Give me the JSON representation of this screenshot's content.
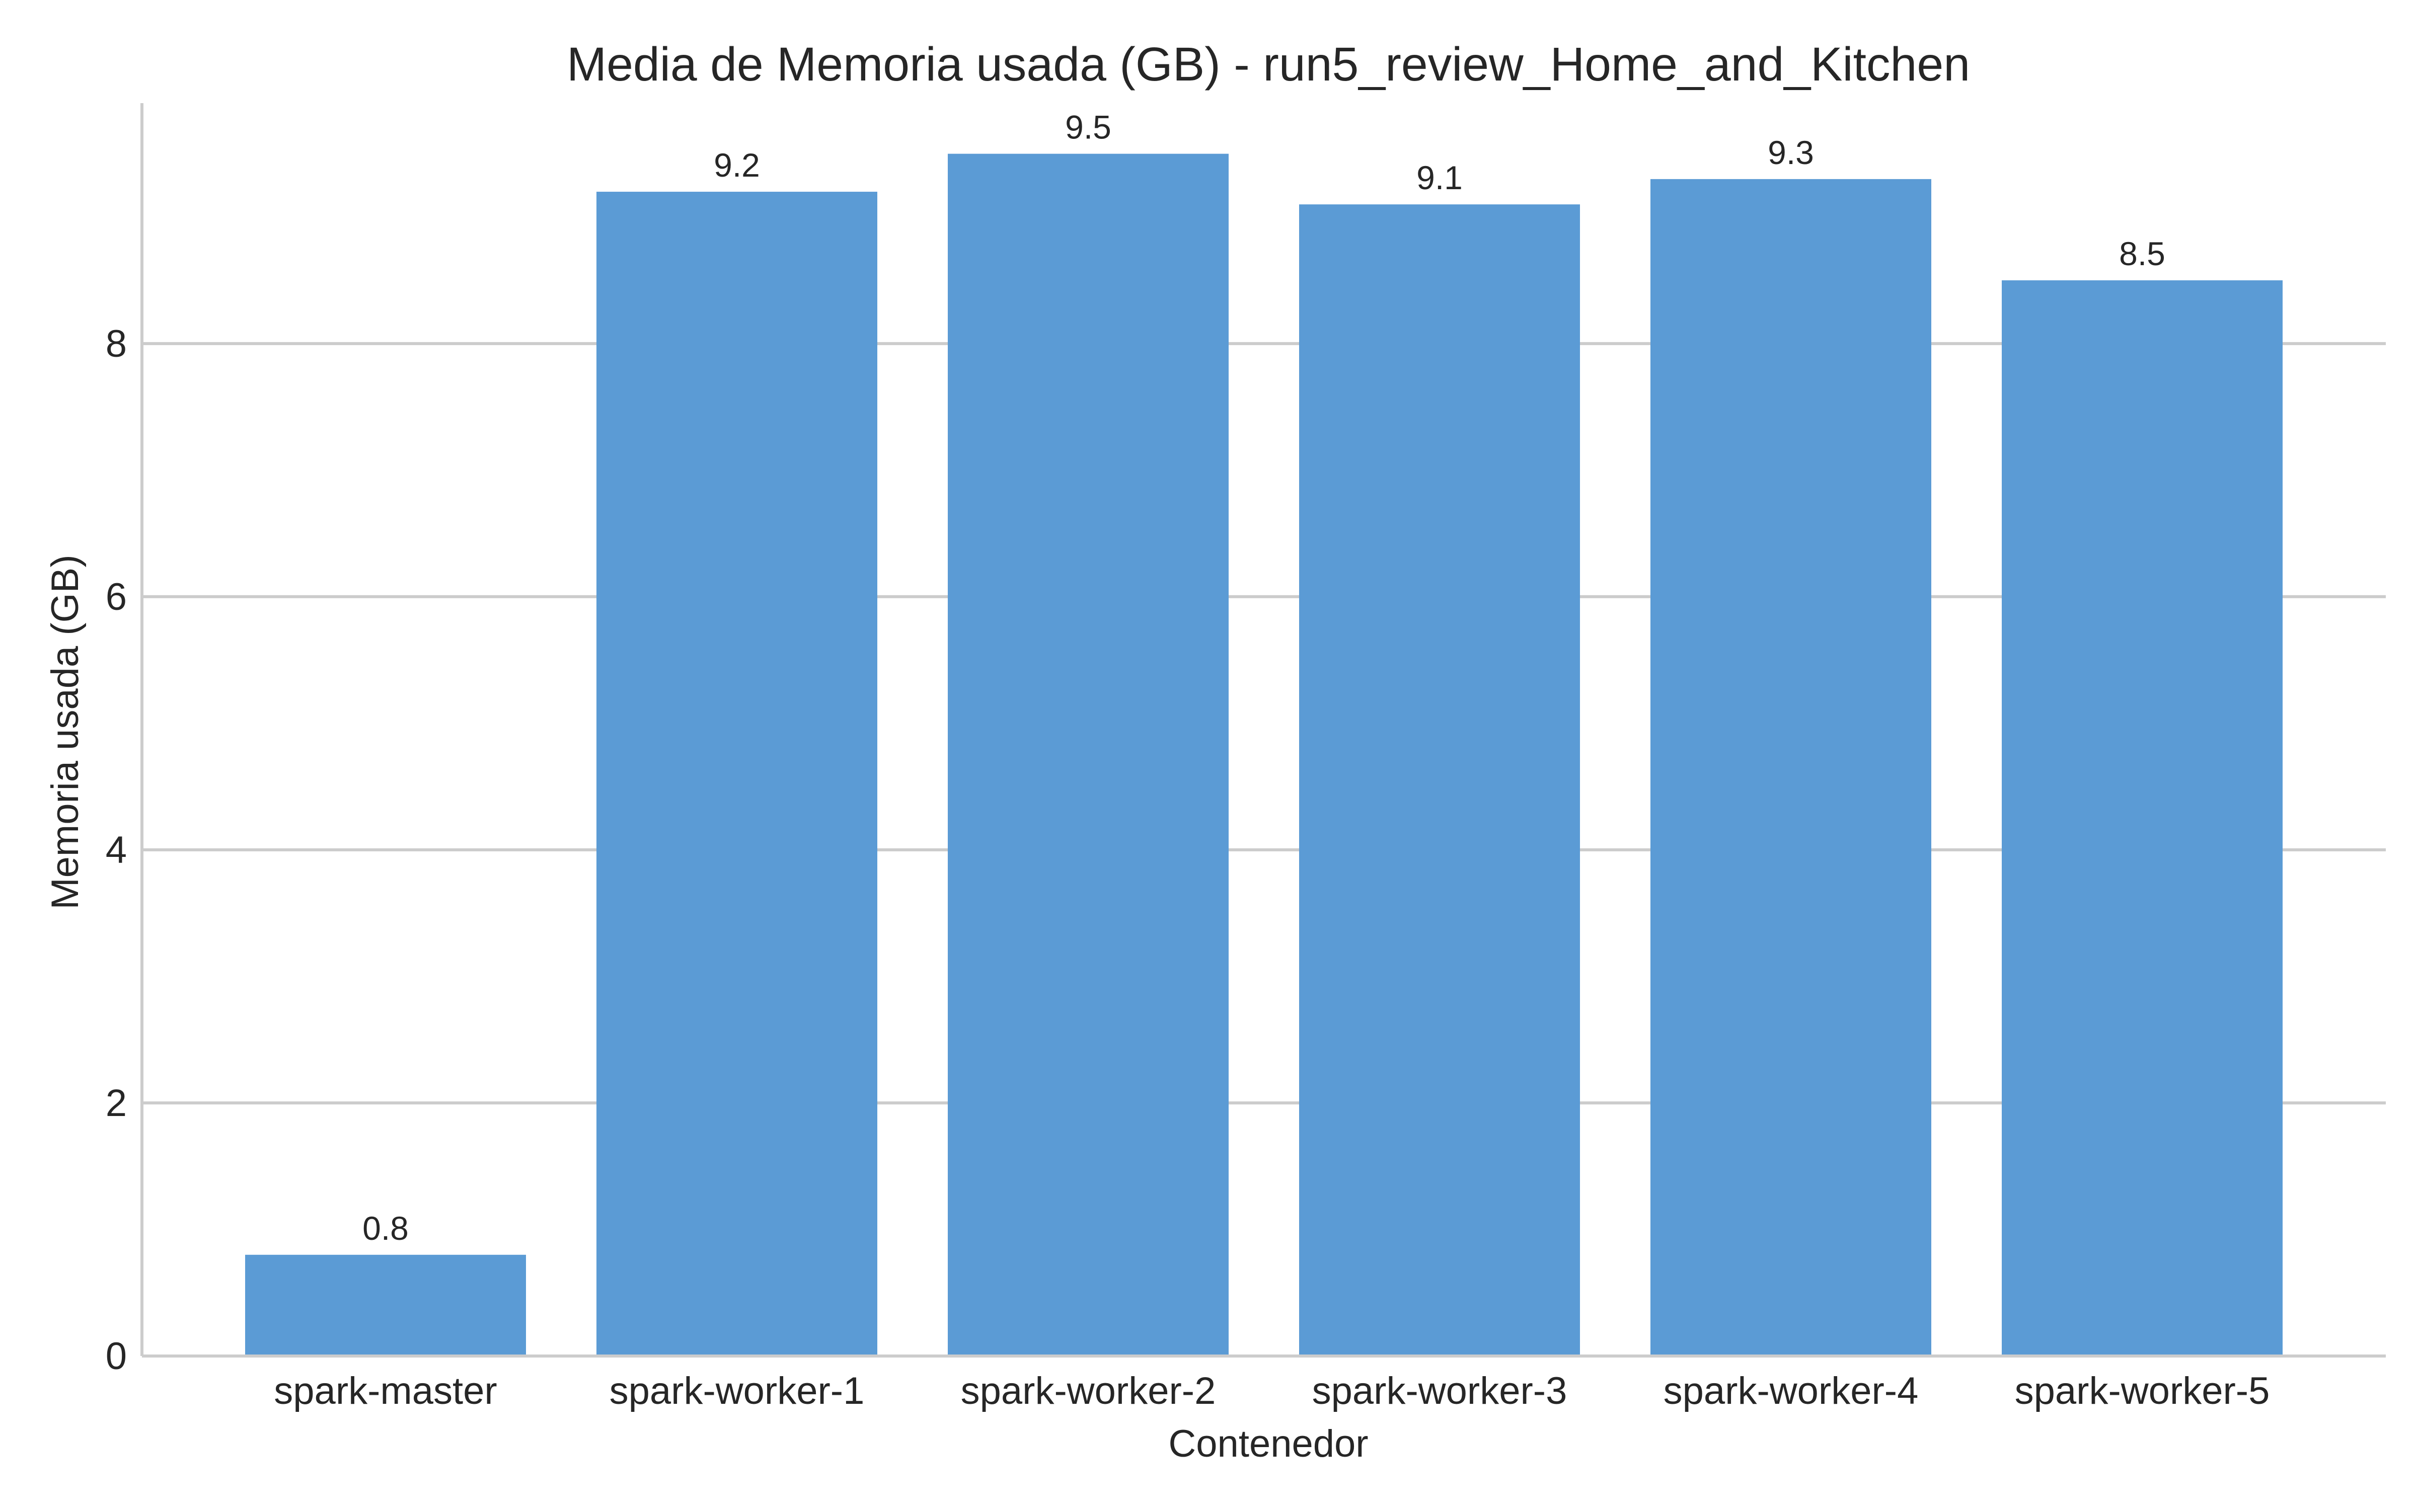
{
  "chart_data": {
    "type": "bar",
    "title": "Media de Memoria usada (GB) - run5_review_Home_and_Kitchen",
    "xlabel": "Contenedor",
    "ylabel": "Memoria usada (GB)",
    "categories": [
      "spark-master",
      "spark-worker-1",
      "spark-worker-2",
      "spark-worker-3",
      "spark-worker-4",
      "spark-worker-5"
    ],
    "values": [
      0.8,
      9.2,
      9.5,
      9.1,
      9.3,
      8.5
    ],
    "data_labels": [
      "0.8",
      "9.2",
      "9.5",
      "9.1",
      "9.3",
      "8.5"
    ],
    "ylim": [
      0,
      9.9
    ],
    "yticks": [
      0,
      2,
      4,
      6,
      8
    ],
    "ytick_labels": [
      "0",
      "2",
      "4",
      "6",
      "8"
    ],
    "grid": true,
    "grid_axis": "y",
    "legend": "none",
    "bar_color": "#5b9bd5"
  }
}
